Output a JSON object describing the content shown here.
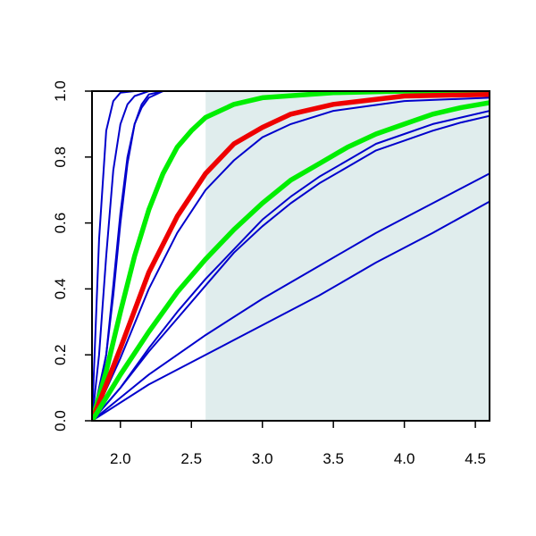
{
  "chart_data": {
    "type": "line",
    "title": "",
    "xlabel": "",
    "ylabel": "",
    "xlim": [
      1.8,
      4.6
    ],
    "ylim": [
      0,
      1
    ],
    "x_ticks": [
      "2.0",
      "2.5",
      "3.0",
      "3.5",
      "4.0",
      "4.5"
    ],
    "y_ticks": [
      "0.0",
      "0.2",
      "0.4",
      "0.6",
      "0.8",
      "1.0"
    ],
    "grid": false,
    "legend": "none",
    "shaded_region": {
      "x_from": 2.6,
      "x_to": 4.6,
      "color": "#e0eded"
    },
    "colors": {
      "blue": "#0000cc",
      "green": "#00ee00",
      "red": "#ee0000",
      "frame": "#000000"
    },
    "series": [
      {
        "color": "blue",
        "width": "thin",
        "points": [
          [
            1.8,
            0.0
          ],
          [
            1.85,
            0.55
          ],
          [
            1.9,
            0.88
          ],
          [
            1.95,
            0.97
          ],
          [
            2.0,
            0.995
          ],
          [
            2.1,
            1.0
          ],
          [
            4.6,
            1.0
          ]
        ]
      },
      {
        "color": "blue",
        "width": "thin",
        "points": [
          [
            1.8,
            0.0
          ],
          [
            1.85,
            0.2
          ],
          [
            1.9,
            0.5
          ],
          [
            1.95,
            0.76
          ],
          [
            2.0,
            0.9
          ],
          [
            2.05,
            0.96
          ],
          [
            2.1,
            0.985
          ],
          [
            2.2,
            1.0
          ],
          [
            4.6,
            1.0
          ]
        ]
      },
      {
        "color": "blue",
        "width": "thin",
        "points": [
          [
            1.8,
            0.0
          ],
          [
            1.85,
            0.08
          ],
          [
            1.9,
            0.2
          ],
          [
            1.95,
            0.41
          ],
          [
            2.0,
            0.63
          ],
          [
            2.05,
            0.8
          ],
          [
            2.1,
            0.9
          ],
          [
            2.15,
            0.95
          ],
          [
            2.2,
            0.98
          ],
          [
            2.3,
            1.0
          ],
          [
            4.6,
            1.0
          ]
        ]
      },
      {
        "color": "blue",
        "width": "thin",
        "points": [
          [
            1.8,
            0.0
          ],
          [
            1.85,
            0.1
          ],
          [
            1.9,
            0.2
          ],
          [
            1.95,
            0.38
          ],
          [
            2.0,
            0.6
          ],
          [
            2.05,
            0.78
          ],
          [
            2.1,
            0.9
          ],
          [
            2.15,
            0.96
          ],
          [
            2.2,
            0.99
          ],
          [
            2.3,
            1.0
          ],
          [
            4.6,
            1.0
          ]
        ]
      },
      {
        "color": "green",
        "width": "thick",
        "points": [
          [
            1.8,
            0.0
          ],
          [
            1.9,
            0.15
          ],
          [
            2.0,
            0.33
          ],
          [
            2.1,
            0.5
          ],
          [
            2.2,
            0.64
          ],
          [
            2.3,
            0.75
          ],
          [
            2.4,
            0.83
          ],
          [
            2.5,
            0.88
          ],
          [
            2.6,
            0.92
          ],
          [
            2.8,
            0.96
          ],
          [
            3.0,
            0.98
          ],
          [
            3.5,
            0.995
          ],
          [
            4.0,
            1.0
          ],
          [
            4.6,
            1.0
          ]
        ]
      },
      {
        "color": "red",
        "width": "thick",
        "points": [
          [
            1.8,
            0.0
          ],
          [
            2.0,
            0.22
          ],
          [
            2.2,
            0.45
          ],
          [
            2.4,
            0.62
          ],
          [
            2.6,
            0.75
          ],
          [
            2.8,
            0.84
          ],
          [
            3.0,
            0.89
          ],
          [
            3.2,
            0.93
          ],
          [
            3.5,
            0.96
          ],
          [
            4.0,
            0.985
          ],
          [
            4.6,
            0.99
          ]
        ]
      },
      {
        "color": "blue",
        "width": "thin",
        "points": [
          [
            1.8,
            0.0
          ],
          [
            2.0,
            0.19
          ],
          [
            2.2,
            0.4
          ],
          [
            2.4,
            0.57
          ],
          [
            2.6,
            0.7
          ],
          [
            2.8,
            0.79
          ],
          [
            3.0,
            0.86
          ],
          [
            3.2,
            0.9
          ],
          [
            3.5,
            0.94
          ],
          [
            4.0,
            0.97
          ],
          [
            4.6,
            0.98
          ]
        ]
      },
      {
        "color": "green",
        "width": "thick",
        "points": [
          [
            1.8,
            0.0
          ],
          [
            2.0,
            0.14
          ],
          [
            2.2,
            0.27
          ],
          [
            2.4,
            0.39
          ],
          [
            2.6,
            0.49
          ],
          [
            2.8,
            0.58
          ],
          [
            3.0,
            0.66
          ],
          [
            3.2,
            0.73
          ],
          [
            3.4,
            0.78
          ],
          [
            3.6,
            0.83
          ],
          [
            3.8,
            0.87
          ],
          [
            4.0,
            0.9
          ],
          [
            4.2,
            0.93
          ],
          [
            4.4,
            0.95
          ],
          [
            4.6,
            0.965
          ]
        ]
      },
      {
        "color": "blue",
        "width": "thin",
        "points": [
          [
            1.8,
            0.0
          ],
          [
            2.0,
            0.1
          ],
          [
            2.2,
            0.22
          ],
          [
            2.4,
            0.33
          ],
          [
            2.6,
            0.43
          ],
          [
            2.8,
            0.52
          ],
          [
            3.0,
            0.61
          ],
          [
            3.2,
            0.68
          ],
          [
            3.4,
            0.74
          ],
          [
            3.6,
            0.79
          ],
          [
            3.8,
            0.84
          ],
          [
            4.0,
            0.87
          ],
          [
            4.2,
            0.9
          ],
          [
            4.4,
            0.92
          ],
          [
            4.6,
            0.94
          ]
        ]
      },
      {
        "color": "blue",
        "width": "thin",
        "points": [
          [
            1.8,
            0.0
          ],
          [
            2.0,
            0.1
          ],
          [
            2.2,
            0.21
          ],
          [
            2.4,
            0.31
          ],
          [
            2.6,
            0.41
          ],
          [
            2.8,
            0.51
          ],
          [
            3.0,
            0.59
          ],
          [
            3.2,
            0.66
          ],
          [
            3.4,
            0.72
          ],
          [
            3.6,
            0.77
          ],
          [
            3.8,
            0.82
          ],
          [
            4.0,
            0.85
          ],
          [
            4.2,
            0.88
          ],
          [
            4.4,
            0.905
          ],
          [
            4.6,
            0.925
          ]
        ]
      },
      {
        "color": "blue",
        "width": "thin",
        "points": [
          [
            1.8,
            0.0
          ],
          [
            2.2,
            0.14
          ],
          [
            2.6,
            0.26
          ],
          [
            3.0,
            0.37
          ],
          [
            3.4,
            0.47
          ],
          [
            3.8,
            0.57
          ],
          [
            4.2,
            0.66
          ],
          [
            4.6,
            0.75
          ]
        ]
      },
      {
        "color": "blue",
        "width": "thin",
        "points": [
          [
            1.8,
            0.0
          ],
          [
            2.2,
            0.11
          ],
          [
            2.6,
            0.2
          ],
          [
            3.0,
            0.29
          ],
          [
            3.4,
            0.38
          ],
          [
            3.8,
            0.48
          ],
          [
            4.2,
            0.57
          ],
          [
            4.6,
            0.665
          ]
        ]
      }
    ]
  }
}
